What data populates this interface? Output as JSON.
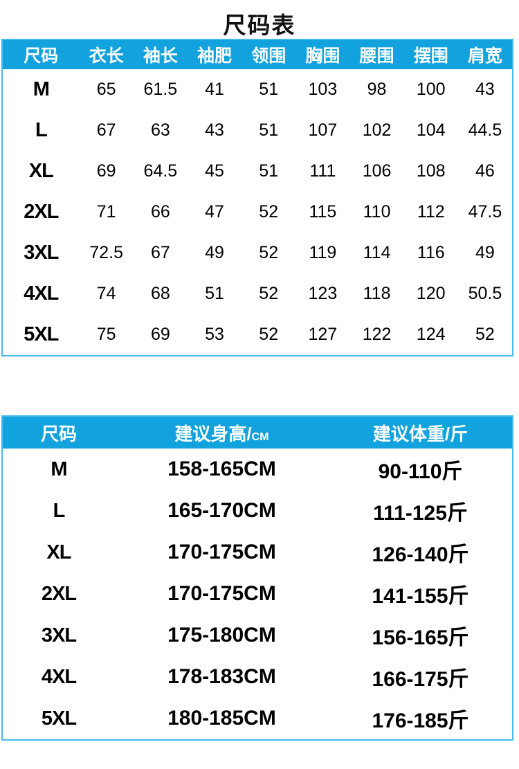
{
  "page": {
    "title": "尺码表"
  },
  "colors": {
    "header_bg": "#12A3DE",
    "header_text": "#ffffff",
    "table_border": "#47B9E9",
    "text": "#000000",
    "title": "#111111"
  },
  "size_table": {
    "headers": [
      "尺码",
      "衣长",
      "袖长",
      "袖肥",
      "领围",
      "胸围",
      "腰围",
      "摆围",
      "肩宽"
    ],
    "rows": [
      [
        "M",
        "65",
        "61.5",
        "41",
        "51",
        "103",
        "98",
        "100",
        "43"
      ],
      [
        "L",
        "67",
        "63",
        "43",
        "51",
        "107",
        "102",
        "104",
        "44.5"
      ],
      [
        "XL",
        "69",
        "64.5",
        "45",
        "51",
        "111",
        "106",
        "108",
        "46"
      ],
      [
        "2XL",
        "71",
        "66",
        "47",
        "52",
        "115",
        "110",
        "112",
        "47.5"
      ],
      [
        "3XL",
        "72.5",
        "67",
        "49",
        "52",
        "119",
        "114",
        "116",
        "49"
      ],
      [
        "4XL",
        "74",
        "68",
        "51",
        "52",
        "123",
        "118",
        "120",
        "50.5"
      ],
      [
        "5XL",
        "75",
        "69",
        "53",
        "52",
        "127",
        "122",
        "124",
        "52"
      ]
    ]
  },
  "recommend_table": {
    "headers": [
      {
        "text": "尺码",
        "unit": ""
      },
      {
        "text": "建议身高/",
        "unit": "CM"
      },
      {
        "text": "建议体重/斤",
        "unit": ""
      }
    ],
    "rows": [
      [
        "M",
        "158-165CM",
        "90-110斤"
      ],
      [
        "L",
        "165-170CM",
        "111-125斤"
      ],
      [
        "XL",
        "170-175CM",
        "126-140斤"
      ],
      [
        "2XL",
        "170-175CM",
        "141-155斤"
      ],
      [
        "3XL",
        "175-180CM",
        "156-165斤"
      ],
      [
        "4XL",
        "178-183CM",
        "166-175斤"
      ],
      [
        "5XL",
        "180-185CM",
        "176-185斤"
      ]
    ]
  }
}
